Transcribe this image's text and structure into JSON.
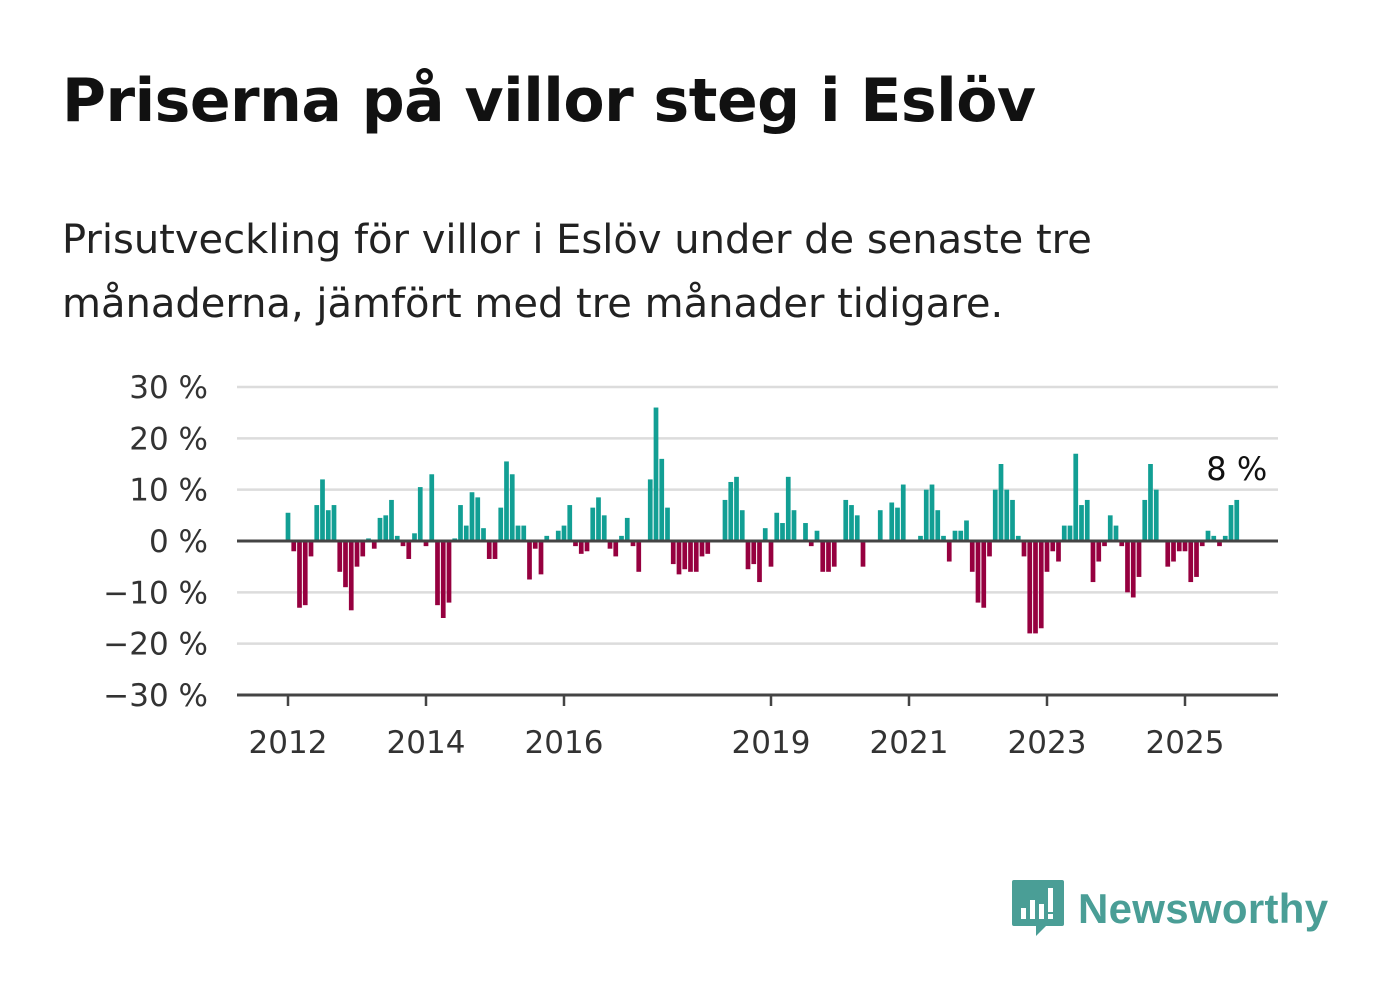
{
  "header": {
    "title": "Priserna på villor steg i Eslöv",
    "subtitle": "Prisutveckling för villor i Eslöv under de senaste tre månaderna, jämfört med tre månader tidigare."
  },
  "brand": {
    "name": "Newsworthy",
    "icon": "newsworthy-logo-icon",
    "color": "#4a9e96"
  },
  "colors": {
    "positive": "#129f94",
    "negative": "#96003f",
    "grid": "#dcdcdc",
    "axis": "#444444"
  },
  "chart_data": {
    "type": "bar",
    "x_start": "2012-01",
    "x_interval": "month",
    "ylim": [
      -30,
      30
    ],
    "yticks": [
      30,
      20,
      10,
      0,
      -10,
      -20,
      -30
    ],
    "ytick_labels": [
      "30 %",
      "20 %",
      "10 %",
      "0 %",
      "−10 %",
      "−20 %",
      "−30 %"
    ],
    "xticks": [
      "2012",
      "2014",
      "2016",
      "2019",
      "2021",
      "2023",
      "2025"
    ],
    "grid": true,
    "last_value_label": "8 %",
    "values": [
      5.5,
      -2,
      -13,
      -12.5,
      -3,
      7,
      12,
      6,
      7,
      -6,
      -9,
      -13.5,
      -5,
      -3,
      0.5,
      -1.5,
      4.5,
      5,
      8,
      1,
      -1,
      -3.5,
      1.5,
      10.5,
      -1,
      13,
      -12.5,
      -15,
      -12,
      0.5,
      7,
      3,
      9.5,
      8.5,
      2.5,
      -3.5,
      -3.5,
      6.5,
      15.5,
      13,
      3,
      3,
      -7.5,
      -1.5,
      -6.5,
      1,
      0,
      2,
      3,
      7,
      -1,
      -2.5,
      -2,
      6.5,
      8.5,
      5,
      -1.5,
      -3,
      1,
      4.5,
      -1,
      -6,
      0,
      12,
      26,
      16,
      6.5,
      -4.5,
      -6.5,
      -5.5,
      -6,
      -6,
      -3,
      -2.5,
      0,
      0,
      8,
      11.5,
      12.5,
      6,
      -5.5,
      -4.5,
      -8,
      2.5,
      -5,
      5.5,
      3.5,
      12.5,
      6,
      0,
      3.5,
      -1,
      2,
      -6,
      -6,
      -5,
      0,
      8,
      7,
      5,
      -5,
      0,
      0,
      6,
      0,
      7.5,
      6.5,
      11,
      0,
      0,
      1,
      10,
      11,
      6,
      1,
      -4,
      2,
      2,
      4,
      -6,
      -12,
      -13,
      -3,
      10,
      15,
      10,
      8,
      1,
      -3,
      -18,
      -18,
      -17,
      -6,
      -2,
      -4,
      3,
      3,
      17,
      7,
      8,
      -8,
      -4,
      -1,
      5,
      3,
      -1,
      -10,
      -11,
      -7,
      8,
      15,
      10,
      0,
      -5,
      -4,
      -2,
      -2,
      -8,
      -7,
      -1,
      2,
      1,
      -1,
      1,
      7,
      8
    ]
  }
}
